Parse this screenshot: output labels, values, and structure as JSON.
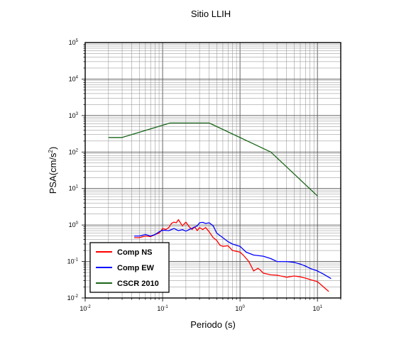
{
  "chart_data": {
    "type": "line",
    "title": "Sitio LLIH",
    "xlabel": "Periodo (s)",
    "ylabel_base": "PSA(cm/s",
    "ylabel_sup": "2",
    "ylabel_end": ")",
    "x_scale": "log",
    "y_scale": "log",
    "xlim": [
      0.01,
      20
    ],
    "ylim": [
      0.01,
      100000
    ],
    "grid": true,
    "legend_position": "bottom-left",
    "x_ticks": [
      {
        "base": "10",
        "exp": "-2",
        "value": 0.01
      },
      {
        "base": "10",
        "exp": "-1",
        "value": 0.1
      },
      {
        "base": "10",
        "exp": "0",
        "value": 1
      },
      {
        "base": "10",
        "exp": "1",
        "value": 10
      }
    ],
    "y_ticks": [
      {
        "base": "10",
        "exp": "-2",
        "value": 0.01
      },
      {
        "base": "10",
        "exp": "-1",
        "value": 0.1
      },
      {
        "base": "10",
        "exp": "0",
        "value": 1
      },
      {
        "base": "10",
        "exp": "1",
        "value": 10
      },
      {
        "base": "10",
        "exp": "2",
        "value": 100
      },
      {
        "base": "10",
        "exp": "3",
        "value": 1000
      },
      {
        "base": "10",
        "exp": "4",
        "value": 10000
      },
      {
        "base": "10",
        "exp": "5",
        "value": 100000
      }
    ],
    "series": [
      {
        "name": "Comp NS",
        "color": "#ff0000",
        "x": [
          0.043,
          0.05,
          0.06,
          0.07,
          0.08,
          0.09,
          0.1,
          0.11,
          0.12,
          0.13,
          0.14,
          0.15,
          0.16,
          0.18,
          0.2,
          0.22,
          0.24,
          0.26,
          0.28,
          0.3,
          0.33,
          0.36,
          0.4,
          0.45,
          0.5,
          0.55,
          0.6,
          0.7,
          0.8,
          0.9,
          1.0,
          1.1,
          1.3,
          1.5,
          1.7,
          1.8,
          2.0,
          2.5,
          3.0,
          4.0,
          5.0,
          6.0,
          7.0,
          8.0,
          10.0,
          12.0,
          14.0
        ],
        "y": [
          0.45,
          0.45,
          0.5,
          0.48,
          0.55,
          0.6,
          0.8,
          0.75,
          0.85,
          1.1,
          1.2,
          1.15,
          1.4,
          0.95,
          1.2,
          0.9,
          0.75,
          0.9,
          0.7,
          0.85,
          0.75,
          0.85,
          0.65,
          0.45,
          0.38,
          0.28,
          0.26,
          0.27,
          0.2,
          0.19,
          0.18,
          0.15,
          0.1,
          0.055,
          0.065,
          0.06,
          0.048,
          0.043,
          0.042,
          0.037,
          0.04,
          0.038,
          0.035,
          0.032,
          0.028,
          0.02,
          0.015
        ]
      },
      {
        "name": "Comp EW",
        "color": "#0000ff",
        "x": [
          0.043,
          0.05,
          0.06,
          0.07,
          0.08,
          0.09,
          0.1,
          0.12,
          0.14,
          0.16,
          0.18,
          0.2,
          0.22,
          0.25,
          0.28,
          0.3,
          0.33,
          0.36,
          0.4,
          0.45,
          0.5,
          0.6,
          0.7,
          0.8,
          1.0,
          1.2,
          1.5,
          2.0,
          2.5,
          3.0,
          4.0,
          5.0,
          6.0,
          7.0,
          8.0,
          10.0,
          12.0,
          15.0
        ],
        "y": [
          0.5,
          0.5,
          0.55,
          0.5,
          0.55,
          0.65,
          0.72,
          0.7,
          0.8,
          0.7,
          0.75,
          0.68,
          0.75,
          0.85,
          0.95,
          1.15,
          1.18,
          1.1,
          1.15,
          0.95,
          0.6,
          0.45,
          0.35,
          0.3,
          0.26,
          0.18,
          0.15,
          0.14,
          0.12,
          0.1,
          0.1,
          0.095,
          0.085,
          0.075,
          0.065,
          0.055,
          0.045,
          0.034
        ]
      },
      {
        "name": "CSCR 2010",
        "color": "#1a661a",
        "x": [
          0.02,
          0.03,
          0.125,
          0.4,
          2.5,
          10.0
        ],
        "y": [
          250,
          250,
          625,
          625,
          100,
          6.25
        ]
      }
    ]
  }
}
